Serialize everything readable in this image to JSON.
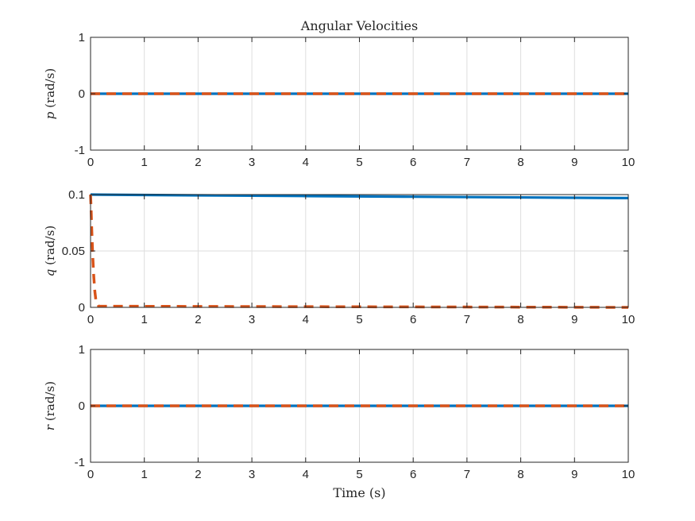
{
  "chart_data": [
    {
      "type": "line",
      "title": "Angular Velocities",
      "ylabel_symbol": "p",
      "ylabel_unit": "(rad/s)",
      "xlabel": "",
      "xlim": [
        0,
        10
      ],
      "ylim": [
        -1,
        1
      ],
      "xticks": [
        "0",
        "1",
        "2",
        "3",
        "4",
        "5",
        "6",
        "7",
        "8",
        "9",
        "10"
      ],
      "yticks": [
        "-1",
        "0",
        "1"
      ],
      "ytick_values": [
        -1,
        0,
        1
      ],
      "grid": true,
      "series": [
        {
          "color": "#0072BD",
          "style": "solid",
          "x": [
            0,
            10
          ],
          "y": [
            0,
            0
          ]
        },
        {
          "color": "#D95319",
          "style": "dashed",
          "x": [
            0,
            10
          ],
          "y": [
            0,
            0
          ]
        }
      ]
    },
    {
      "type": "line",
      "title": "",
      "ylabel_symbol": "q",
      "ylabel_unit": "(rad/s)",
      "xlabel": "",
      "xlim": [
        0,
        10
      ],
      "ylim": [
        0,
        0.1
      ],
      "xticks": [
        "0",
        "1",
        "2",
        "3",
        "4",
        "5",
        "6",
        "7",
        "8",
        "9",
        "10"
      ],
      "yticks": [
        "0",
        "0.05",
        "0.1"
      ],
      "ytick_values": [
        0,
        0.05,
        0.1
      ],
      "grid": true,
      "series": [
        {
          "color": "#0072BD",
          "style": "solid",
          "x": [
            0,
            2,
            4,
            6,
            8,
            10
          ],
          "y": [
            0.1,
            0.0993,
            0.0987,
            0.0981,
            0.0975,
            0.0969
          ]
        },
        {
          "color": "#D95319",
          "style": "dashed",
          "x": [
            0,
            0.01,
            0.02,
            0.04,
            0.06,
            0.08,
            0.1,
            0.15,
            10
          ],
          "y": [
            0.1,
            0.088,
            0.072,
            0.046,
            0.027,
            0.014,
            0.006,
            0.001,
            0
          ]
        }
      ]
    },
    {
      "type": "line",
      "title": "",
      "ylabel_symbol": "r",
      "ylabel_unit": "(rad/s)",
      "xlabel": "Time (s)",
      "xlim": [
        0,
        10
      ],
      "ylim": [
        -1,
        1
      ],
      "xticks": [
        "0",
        "1",
        "2",
        "3",
        "4",
        "5",
        "6",
        "7",
        "8",
        "9",
        "10"
      ],
      "yticks": [
        "-1",
        "0",
        "1"
      ],
      "ytick_values": [
        -1,
        0,
        1
      ],
      "grid": true,
      "series": [
        {
          "color": "#0072BD",
          "style": "solid",
          "x": [
            0,
            10
          ],
          "y": [
            0,
            0
          ]
        },
        {
          "color": "#D95319",
          "style": "dashed",
          "x": [
            0,
            10
          ],
          "y": [
            0,
            0
          ]
        }
      ]
    }
  ]
}
